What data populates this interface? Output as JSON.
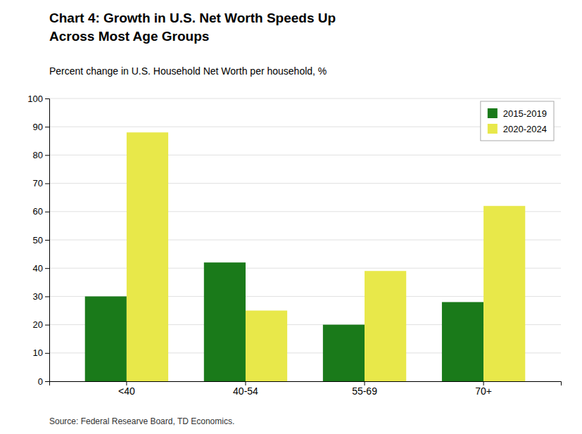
{
  "chart_data": {
    "type": "bar",
    "title": [
      "Chart 4: Growth in U.S. Net Worth Speeds Up",
      "Across Most Age Groups"
    ],
    "subtitle": "Percent change in U.S. Household Net Worth per household, %",
    "source": "Source: Federal Researve Board, TD Economics.",
    "categories": [
      "<40",
      "40-54",
      "55-69",
      "70+"
    ],
    "series": [
      {
        "name": "2015-2019",
        "values": [
          30,
          42,
          20,
          28
        ],
        "color": "#1a7a1a"
      },
      {
        "name": "2020-2024",
        "values": [
          88,
          25,
          39,
          62
        ],
        "color": "#e8e84a"
      }
    ],
    "ylim": [
      0,
      100
    ],
    "yticks": [
      0,
      10,
      20,
      30,
      40,
      50,
      60,
      70,
      80,
      90,
      100
    ],
    "grid": true,
    "legend": "upper right"
  }
}
